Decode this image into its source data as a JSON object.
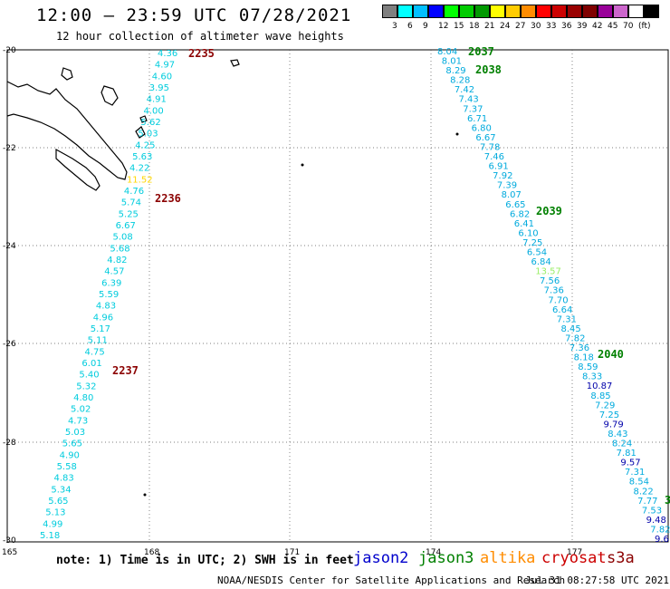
{
  "header": {
    "title": "12:00 — 23:59 UTC 07/28/2021",
    "subtitle": "12 hour collection of altimeter wave heights"
  },
  "colorbar": {
    "colors": [
      "#7f7f7f",
      "#00ffff",
      "#00bfff",
      "#0000ff",
      "#00ff00",
      "#00cc00",
      "#009900",
      "#ffff00",
      "#ffcc00",
      "#ff8c00",
      "#ff0000",
      "#cc0000",
      "#990000",
      "#7f0000",
      "#990099",
      "#cc66cc",
      "#ffffff",
      "#000000"
    ],
    "labels": [
      "3",
      "6",
      "9",
      "12",
      "15",
      "18",
      "21",
      "24",
      "27",
      "30",
      "33",
      "36",
      "39",
      "42",
      "45",
      "70",
      "(ft)"
    ]
  },
  "map": {
    "lon_ticks": [
      "165",
      "168",
      "171",
      "174",
      "177"
    ],
    "lat_ticks": [
      "-20",
      "-22",
      "-24",
      "-26",
      "-28",
      "-30"
    ],
    "time_labels": [
      {
        "text": "2235",
        "color": "#8b0000"
      },
      {
        "text": "2236",
        "color": "#8b0000"
      },
      {
        "text": "2237",
        "color": "#8b0000"
      },
      {
        "text": "2037",
        "color": "#008000"
      },
      {
        "text": "2038",
        "color": "#008000"
      },
      {
        "text": "2039",
        "color": "#008000"
      },
      {
        "text": "2040",
        "color": "#008000"
      },
      {
        "text": "3",
        "color": "#008000"
      }
    ],
    "track_a": [
      "4.36",
      "4.97",
      "4.60",
      "3.95",
      "4.91",
      "4.00",
      "5.62",
      "5.03",
      "4.25",
      "5.63",
      "4.22",
      "11.52",
      "4.76",
      "5.74",
      "5.25",
      "6.67",
      "5.08",
      "5.68",
      "4.82",
      "4.57",
      "6.39",
      "5.59",
      "4.83",
      "4.96",
      "5.17",
      "5.11",
      "4.75",
      "6.01",
      "5.40",
      "5.32",
      "4.80",
      "5.02",
      "4.73",
      "5.03",
      "5.65",
      "4.90",
      "5.58",
      "4.83",
      "5.34",
      "5.65",
      "5.13",
      "4.99",
      "5.18"
    ],
    "track_b": [
      "8.04",
      "8.01",
      "8.29",
      "8.28",
      "7.42",
      "7.43",
      "7.37",
      "6.71",
      "6.80",
      "6.67",
      "7.78",
      "7.46",
      "6.91",
      "7.92",
      "7.39",
      "8.07",
      "6.65",
      "6.82",
      "6.41",
      "6.10",
      "7.25",
      "6.54",
      "6.84",
      "13.57",
      "7.56",
      "7.36",
      "7.70",
      "6.64",
      "7.31",
      "8.45",
      "7.82",
      "7.36",
      "8.18",
      "8.59",
      "8.33",
      "10.87",
      "8.85",
      "7.29",
      "7.25",
      "9.79",
      "8.43",
      "8.24",
      "7.81",
      "9.57",
      "7.31",
      "8.54",
      "8.22",
      "7.77",
      "7.53",
      "9.48",
      "7.82",
      "9.6"
    ]
  },
  "footer": {
    "note": "note: 1) Time is in UTC; 2) SWH is in feet",
    "satellites": [
      {
        "name": "jason2",
        "color": "#0000cc"
      },
      {
        "name": "jason3",
        "color": "#008000"
      },
      {
        "name": "altika",
        "color": "#ff8c00"
      },
      {
        "name": "cryosat",
        "color": "#cc0000"
      },
      {
        "name": "s3a",
        "color": "#8b0000"
      }
    ],
    "credit": "NOAA/NESDIS Center for Satellite Applications and Research",
    "timestamp": "Jul 31 08:27:58 UTC 2021"
  }
}
